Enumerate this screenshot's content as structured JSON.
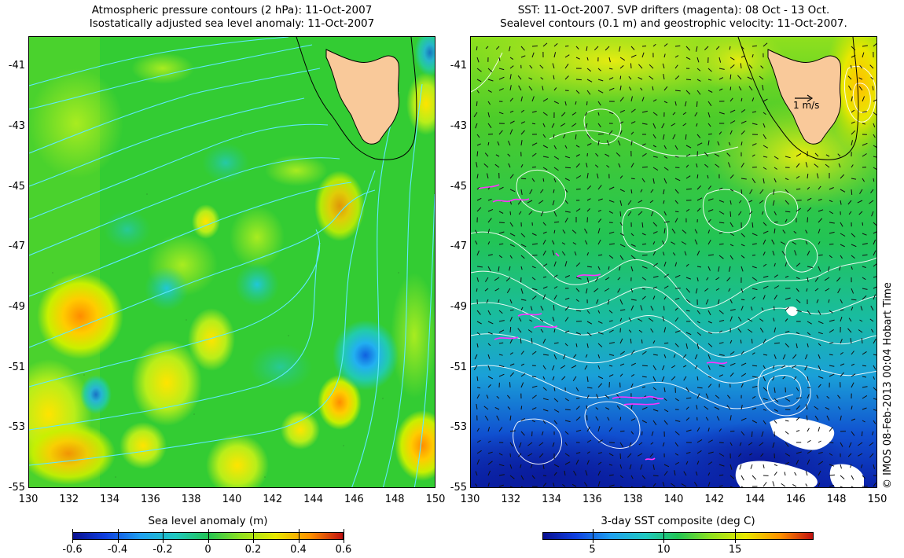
{
  "left_panel": {
    "title_line1": "Atmospheric pressure contours (2 hPa): 11-Oct-2007",
    "title_line2": "Isostatically adjusted sea level anomaly: 11-Oct-2007",
    "colorbar_label": "Sea level anomaly (m)",
    "colorbar_ticks": [
      "-0.6",
      "-0.4",
      "-0.2",
      "0",
      "0.2",
      "0.4",
      "0.6"
    ],
    "colors": {
      "contour": "#5fe8ff",
      "base": "#33cc33",
      "land": "#f9c99a"
    }
  },
  "right_panel": {
    "title_line1": "SST: 11-Oct-2007. SVP drifters (magenta): 08 Oct - 13 Oct.",
    "title_line2": "Sealevel contours (0.1 m) and geostrophic velocity: 11-Oct-2007.",
    "colorbar_label": "3-day SST composite (deg C)",
    "colorbar_ticks": [
      "5",
      "10",
      "15"
    ],
    "velocity_scale_label": "1 m/s",
    "colors": {
      "contour": "#ffffff",
      "drifter": "#ff33ff",
      "land": "#f9c99a"
    }
  },
  "axes": {
    "lat_ticks": [
      "-41",
      "-43",
      "-45",
      "-47",
      "-49",
      "-51",
      "-53",
      "-55"
    ],
    "lon_ticks": [
      "130",
      "132",
      "134",
      "136",
      "138",
      "140",
      "142",
      "144",
      "146",
      "148",
      "150"
    ],
    "lon_range": [
      130,
      150
    ],
    "lat_range": [
      -55,
      -40
    ]
  },
  "credit": "© IMOS 08-Feb-2013 00:04 Hobart Time"
}
